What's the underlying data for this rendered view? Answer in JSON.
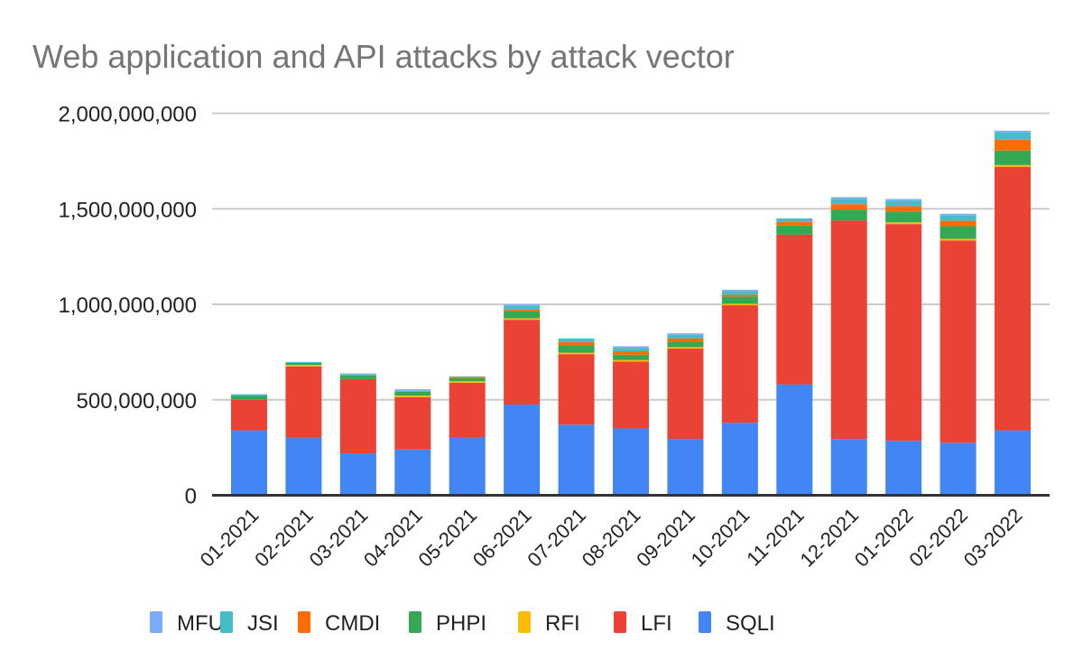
{
  "chart_data": {
    "type": "bar",
    "stacked": true,
    "title": "Web application and API attacks by attack vector",
    "xlabel": "",
    "ylabel": "",
    "ylim": [
      0,
      2000000000
    ],
    "yticks": [
      0,
      500000000,
      1000000000,
      1500000000,
      2000000000
    ],
    "ytick_labels": [
      "0",
      "500,000,000",
      "1,000,000,000",
      "1,500,000,000",
      "2,000,000,000"
    ],
    "grid": true,
    "legend_position": "bottom",
    "categories": [
      "01-2021",
      "02-2021",
      "03-2021",
      "04-2021",
      "05-2021",
      "06-2021",
      "07-2021",
      "08-2021",
      "09-2021",
      "10-2021",
      "11-2021",
      "12-2021",
      "01-2022",
      "02-2022",
      "03-2022"
    ],
    "series": [
      {
        "name": "SQLI",
        "color": "#4285f4",
        "values": [
          340000000,
          305000000,
          220000000,
          240000000,
          305000000,
          475000000,
          370000000,
          350000000,
          295000000,
          380000000,
          580000000,
          295000000,
          285000000,
          275000000,
          340000000
        ]
      },
      {
        "name": "LFI",
        "color": "#ea4335",
        "values": [
          160000000,
          370000000,
          388000000,
          274000000,
          284000000,
          444000000,
          369000000,
          350000000,
          473000000,
          615000000,
          785000000,
          1144000000,
          1135000000,
          1059000000,
          1380000000
        ]
      },
      {
        "name": "RFI",
        "color": "#fbbc04",
        "values": [
          0,
          8000000,
          0,
          8000000,
          8000000,
          8000000,
          8000000,
          8000000,
          8000000,
          8000000,
          0,
          0,
          9000000,
          9000000,
          9000000
        ]
      },
      {
        "name": "PHPI",
        "color": "#34a853",
        "values": [
          20000000,
          10000000,
          20000000,
          20000000,
          17000000,
          38000000,
          38000000,
          28000000,
          28000000,
          38000000,
          47000000,
          57000000,
          57000000,
          66000000,
          76000000
        ]
      },
      {
        "name": "CMDI",
        "color": "#ff6d01",
        "values": [
          0,
          0,
          0,
          0,
          5000000,
          8000000,
          18000000,
          18000000,
          18000000,
          9000000,
          19000000,
          28000000,
          28000000,
          28000000,
          57000000
        ]
      },
      {
        "name": "JSI",
        "color": "#46bdc6",
        "values": [
          9000000,
          5000000,
          5000000,
          5000000,
          4000000,
          18000000,
          18000000,
          18000000,
          18000000,
          18000000,
          19000000,
          28000000,
          28000000,
          28000000,
          38000000
        ]
      },
      {
        "name": "MFU",
        "color": "#7baaf7",
        "values": [
          0,
          0,
          5000000,
          8000000,
          0,
          8000000,
          0,
          8000000,
          8000000,
          8000000,
          0,
          9000000,
          9000000,
          9000000,
          9000000
        ]
      }
    ],
    "legend_order": [
      "MFU",
      "JSI",
      "CMDI",
      "PHPI",
      "RFI",
      "LFI",
      "SQLI"
    ]
  }
}
